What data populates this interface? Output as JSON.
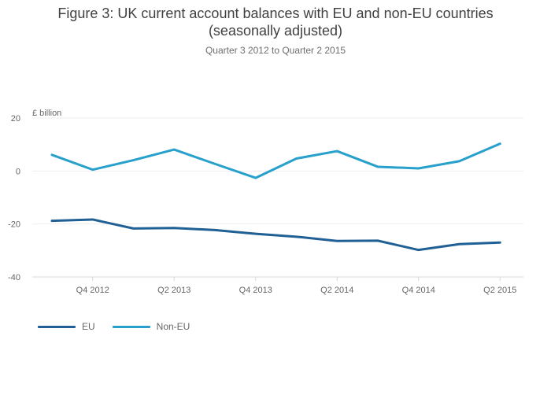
{
  "title_line1": "Figure 3: UK current account balances with EU and non-EU countries",
  "title_line2": "(seasonally adjusted)",
  "subtitle": "Quarter 3 2012 to Quarter 2 2015",
  "chart_data": {
    "type": "line",
    "ylabel": "£ billion",
    "ylim": [
      -40,
      20
    ],
    "yticks": [
      20,
      0,
      -20,
      -40
    ],
    "grid": true,
    "legend_position": "bottom-left",
    "x": [
      "Q3 2012",
      "Q4 2012",
      "Q1 2013",
      "Q2 2013",
      "Q3 2013",
      "Q4 2013",
      "Q1 2014",
      "Q2 2014",
      "Q3 2014",
      "Q4 2014",
      "Q1 2015",
      "Q2 2015"
    ],
    "xtick_labels": [
      "Q4 2012",
      "Q2 2013",
      "Q4 2013",
      "Q2 2014",
      "Q4 2014",
      "Q2 2015"
    ],
    "series": [
      {
        "name": "EU",
        "color": "#206095",
        "values": [
          -18.8,
          -18.3,
          -21.7,
          -21.5,
          -22.3,
          -23.7,
          -24.8,
          -26.4,
          -26.3,
          -29.8,
          -27.6,
          -27.0
        ]
      },
      {
        "name": "Non-EU",
        "color": "#27a0cc",
        "values": [
          6.1,
          0.5,
          4.1,
          8.1,
          2.7,
          -2.6,
          4.7,
          7.5,
          1.6,
          1.0,
          3.7,
          10.3
        ]
      }
    ]
  }
}
